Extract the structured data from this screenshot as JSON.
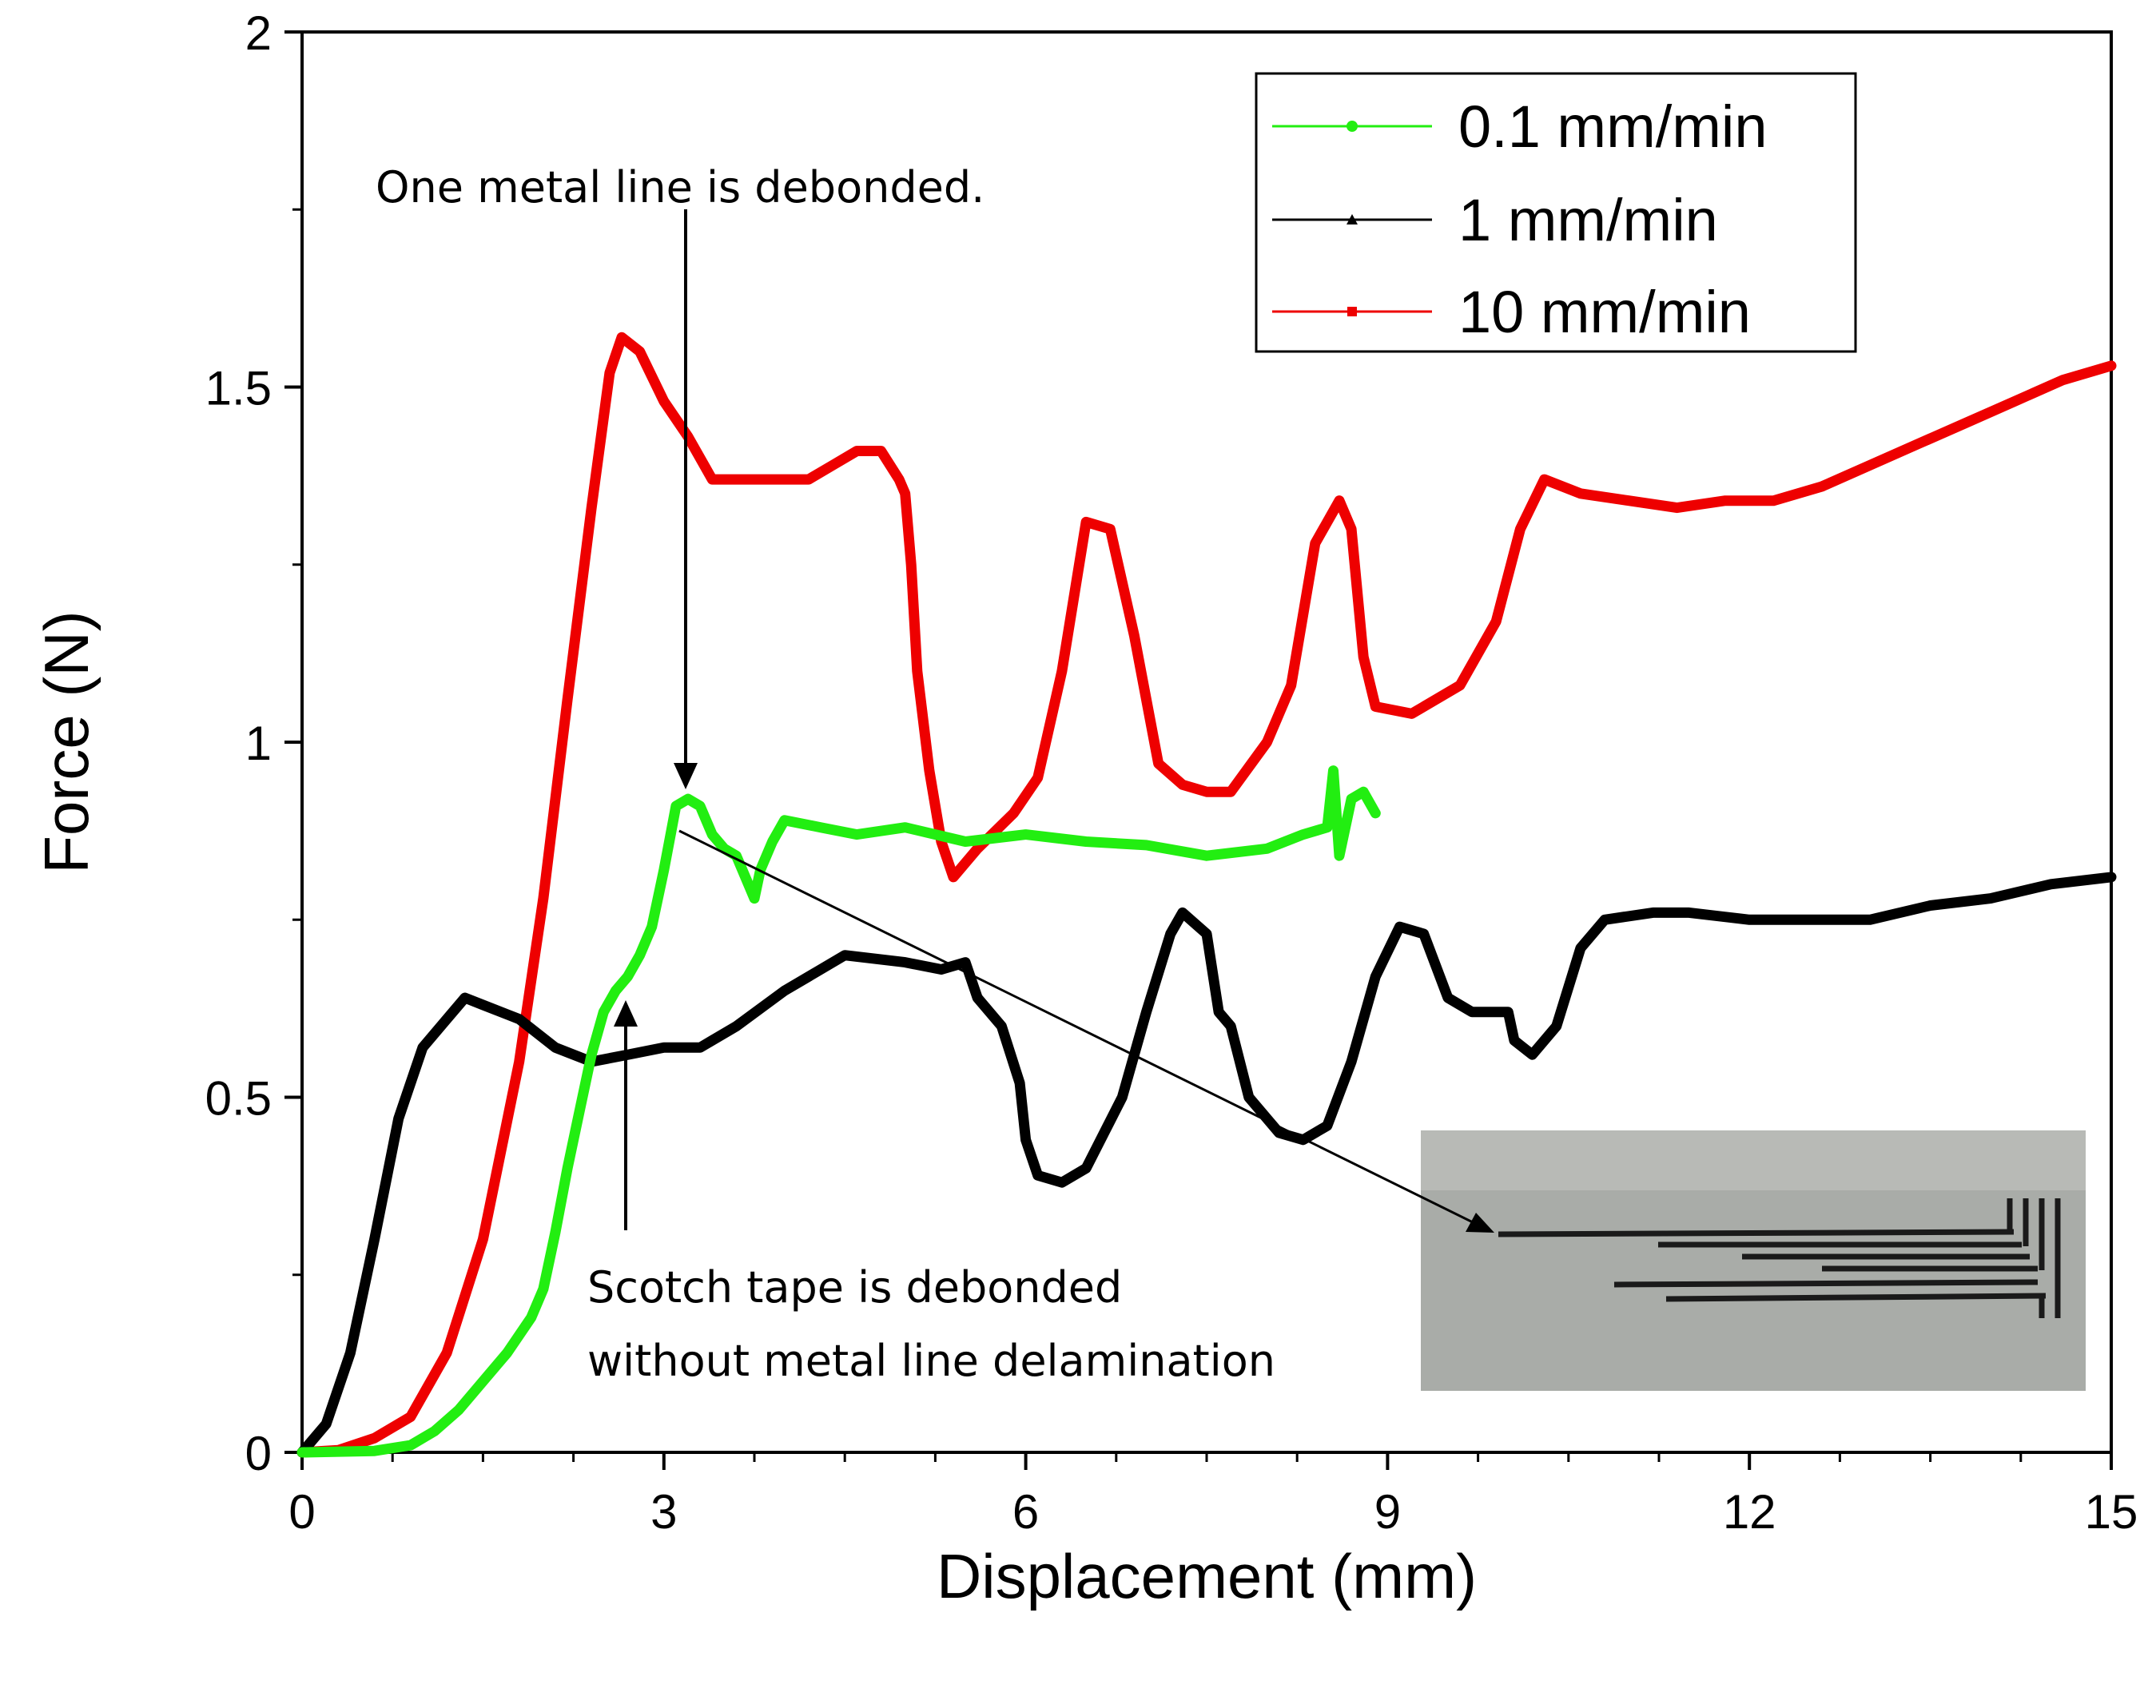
{
  "chart_data": {
    "type": "line",
    "title": "",
    "xlabel": "Displacement (mm)",
    "ylabel": "Force (N)",
    "xlim": [
      0,
      15
    ],
    "ylim": [
      0,
      2
    ],
    "x_ticks": [
      0,
      3,
      6,
      9,
      12,
      15
    ],
    "y_ticks": [
      0,
      0.5,
      1,
      1.5,
      2
    ],
    "x_tick_labels": [
      "0",
      "3",
      "6",
      "9",
      "12",
      "15"
    ],
    "y_tick_labels": [
      "0",
      "0.5",
      "1",
      "1.5",
      "2"
    ],
    "legend_position": "top-right",
    "series": [
      {
        "name": "0.1 mm/min",
        "color": "#22ee11",
        "marker": "circle",
        "points": [
          [
            0,
            0
          ],
          [
            0.6,
            0.002
          ],
          [
            0.9,
            0.01
          ],
          [
            1.1,
            0.03
          ],
          [
            1.3,
            0.06
          ],
          [
            1.5,
            0.1
          ],
          [
            1.7,
            0.14
          ],
          [
            1.9,
            0.19
          ],
          [
            2.0,
            0.23
          ],
          [
            2.1,
            0.31
          ],
          [
            2.2,
            0.4
          ],
          [
            2.3,
            0.48
          ],
          [
            2.4,
            0.56
          ],
          [
            2.5,
            0.62
          ],
          [
            2.6,
            0.65
          ],
          [
            2.7,
            0.67
          ],
          [
            2.8,
            0.7
          ],
          [
            2.9,
            0.74
          ],
          [
            3.0,
            0.82
          ],
          [
            3.1,
            0.91
          ],
          [
            3.2,
            0.92
          ],
          [
            3.3,
            0.91
          ],
          [
            3.4,
            0.87
          ],
          [
            3.5,
            0.85
          ],
          [
            3.6,
            0.84
          ],
          [
            3.7,
            0.8
          ],
          [
            3.75,
            0.78
          ],
          [
            3.8,
            0.82
          ],
          [
            3.9,
            0.86
          ],
          [
            4.0,
            0.89
          ],
          [
            4.3,
            0.88
          ],
          [
            4.6,
            0.87
          ],
          [
            5.0,
            0.88
          ],
          [
            5.5,
            0.86
          ],
          [
            6.0,
            0.87
          ],
          [
            6.5,
            0.86
          ],
          [
            7.0,
            0.855
          ],
          [
            7.5,
            0.84
          ],
          [
            8.0,
            0.85
          ],
          [
            8.3,
            0.87
          ],
          [
            8.5,
            0.88
          ],
          [
            8.55,
            0.96
          ],
          [
            8.6,
            0.84
          ],
          [
            8.7,
            0.92
          ],
          [
            8.8,
            0.93
          ],
          [
            8.9,
            0.9
          ]
        ]
      },
      {
        "name": "1 mm/min",
        "color": "#000000",
        "marker": "triangle",
        "points": [
          [
            0,
            0
          ],
          [
            0.2,
            0.04
          ],
          [
            0.4,
            0.14
          ],
          [
            0.6,
            0.3
          ],
          [
            0.8,
            0.47
          ],
          [
            1.0,
            0.57
          ],
          [
            1.2,
            0.61
          ],
          [
            1.35,
            0.64
          ],
          [
            1.5,
            0.63
          ],
          [
            1.8,
            0.61
          ],
          [
            2.1,
            0.57
          ],
          [
            2.4,
            0.55
          ],
          [
            2.7,
            0.56
          ],
          [
            3.0,
            0.57
          ],
          [
            3.3,
            0.57
          ],
          [
            3.6,
            0.6
          ],
          [
            4.0,
            0.65
          ],
          [
            4.5,
            0.7
          ],
          [
            5.0,
            0.69
          ],
          [
            5.3,
            0.68
          ],
          [
            5.5,
            0.69
          ],
          [
            5.6,
            0.64
          ],
          [
            5.8,
            0.6
          ],
          [
            5.95,
            0.52
          ],
          [
            6.0,
            0.44
          ],
          [
            6.1,
            0.39
          ],
          [
            6.3,
            0.38
          ],
          [
            6.5,
            0.4
          ],
          [
            6.8,
            0.5
          ],
          [
            7.0,
            0.62
          ],
          [
            7.2,
            0.73
          ],
          [
            7.3,
            0.76
          ],
          [
            7.5,
            0.73
          ],
          [
            7.6,
            0.62
          ],
          [
            7.7,
            0.6
          ],
          [
            7.85,
            0.5
          ],
          [
            8.1,
            0.45
          ],
          [
            8.3,
            0.44
          ],
          [
            8.5,
            0.46
          ],
          [
            8.7,
            0.55
          ],
          [
            8.9,
            0.67
          ],
          [
            9.1,
            0.74
          ],
          [
            9.3,
            0.73
          ],
          [
            9.5,
            0.64
          ],
          [
            9.7,
            0.62
          ],
          [
            10.0,
            0.62
          ],
          [
            10.05,
            0.58
          ],
          [
            10.2,
            0.56
          ],
          [
            10.4,
            0.6
          ],
          [
            10.6,
            0.71
          ],
          [
            10.8,
            0.75
          ],
          [
            11.2,
            0.76
          ],
          [
            11.5,
            0.76
          ],
          [
            12.0,
            0.75
          ],
          [
            12.5,
            0.75
          ],
          [
            13.0,
            0.75
          ],
          [
            13.5,
            0.77
          ],
          [
            14.0,
            0.78
          ],
          [
            14.5,
            0.8
          ],
          [
            15.0,
            0.81
          ]
        ]
      },
      {
        "name": "10 mm/min",
        "color": "#ee0000",
        "marker": "square",
        "points": [
          [
            0,
            0
          ],
          [
            0.3,
            0.003
          ],
          [
            0.6,
            0.02
          ],
          [
            0.9,
            0.05
          ],
          [
            1.2,
            0.14
          ],
          [
            1.5,
            0.3
          ],
          [
            1.8,
            0.55
          ],
          [
            2.0,
            0.78
          ],
          [
            2.2,
            1.06
          ],
          [
            2.4,
            1.33
          ],
          [
            2.55,
            1.52
          ],
          [
            2.65,
            1.57
          ],
          [
            2.8,
            1.55
          ],
          [
            3.0,
            1.48
          ],
          [
            3.2,
            1.43
          ],
          [
            3.4,
            1.37
          ],
          [
            3.6,
            1.37
          ],
          [
            4.0,
            1.37
          ],
          [
            4.2,
            1.37
          ],
          [
            4.4,
            1.39
          ],
          [
            4.6,
            1.41
          ],
          [
            4.8,
            1.41
          ],
          [
            4.95,
            1.37
          ],
          [
            5.0,
            1.35
          ],
          [
            5.05,
            1.25
          ],
          [
            5.1,
            1.1
          ],
          [
            5.2,
            0.96
          ],
          [
            5.3,
            0.86
          ],
          [
            5.4,
            0.81
          ],
          [
            5.6,
            0.85
          ],
          [
            5.9,
            0.9
          ],
          [
            6.1,
            0.95
          ],
          [
            6.3,
            1.1
          ],
          [
            6.5,
            1.31
          ],
          [
            6.7,
            1.3
          ],
          [
            6.9,
            1.15
          ],
          [
            7.1,
            0.97
          ],
          [
            7.3,
            0.94
          ],
          [
            7.5,
            0.93
          ],
          [
            7.7,
            0.93
          ],
          [
            8.0,
            1.0
          ],
          [
            8.2,
            1.08
          ],
          [
            8.4,
            1.28
          ],
          [
            8.6,
            1.34
          ],
          [
            8.7,
            1.3
          ],
          [
            8.8,
            1.12
          ],
          [
            8.9,
            1.05
          ],
          [
            9.2,
            1.04
          ],
          [
            9.6,
            1.08
          ],
          [
            9.9,
            1.17
          ],
          [
            10.1,
            1.3
          ],
          [
            10.3,
            1.37
          ],
          [
            10.6,
            1.35
          ],
          [
            11.0,
            1.34
          ],
          [
            11.4,
            1.33
          ],
          [
            11.8,
            1.34
          ],
          [
            12.2,
            1.34
          ],
          [
            12.6,
            1.36
          ],
          [
            13.0,
            1.39
          ],
          [
            13.4,
            1.42
          ],
          [
            13.8,
            1.45
          ],
          [
            14.2,
            1.48
          ],
          [
            14.6,
            1.51
          ],
          [
            15.0,
            1.53
          ]
        ]
      }
    ]
  },
  "annotations": {
    "top": "One metal line is debonded.",
    "bottom_line1": "Scotch tape is debonded",
    "bottom_line2": "without metal line delamination"
  }
}
